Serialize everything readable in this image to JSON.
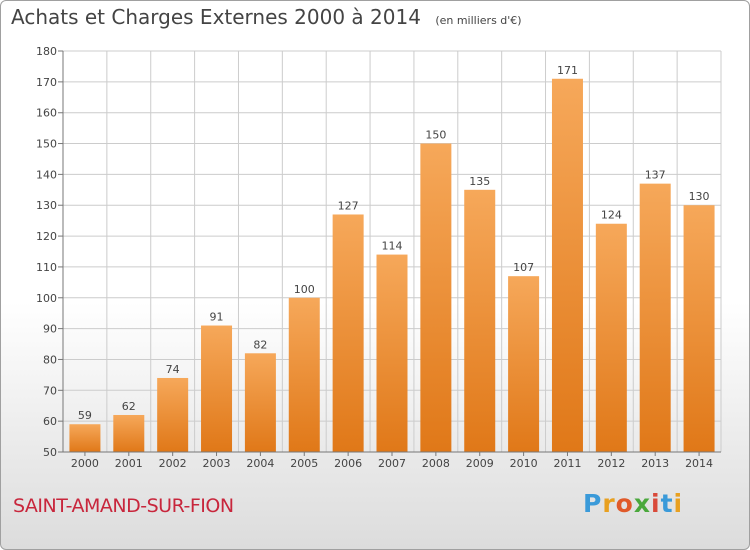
{
  "title": "Achats et Charges Externes 2000 à 2014",
  "unit": "(en milliers d'€)",
  "commune": "SAINT-AMAND-SUR-FION",
  "logo": {
    "text": "Proxiti",
    "letters": [
      {
        "ch": "P",
        "color": "#3a9ad9"
      },
      {
        "ch": "r",
        "color": "#e8a020"
      },
      {
        "ch": "o",
        "color": "#e05a2a"
      },
      {
        "ch": "x",
        "color": "#4aa83c"
      },
      {
        "ch": "i",
        "color": "#d94a3a"
      },
      {
        "ch": "t",
        "color": "#3a9ad9"
      },
      {
        "ch": "i",
        "color": "#e8a020"
      }
    ]
  },
  "colors": {
    "bar_light": "#f6a85a",
    "bar_dark": "#e07818",
    "grid": "#cccccc",
    "axis": "#777777",
    "text": "#444444"
  },
  "chart_data": {
    "type": "bar",
    "categories": [
      "2000",
      "2001",
      "2002",
      "2003",
      "2004",
      "2005",
      "2006",
      "2007",
      "2008",
      "2009",
      "2010",
      "2011",
      "2012",
      "2013",
      "2014"
    ],
    "values": [
      59,
      62,
      74,
      91,
      82,
      100,
      127,
      114,
      150,
      135,
      107,
      171,
      124,
      137,
      130
    ],
    "ylim": [
      50,
      180
    ],
    "yticks": [
      50,
      60,
      70,
      80,
      90,
      100,
      110,
      120,
      130,
      140,
      150,
      160,
      170,
      180
    ],
    "grid": true
  }
}
